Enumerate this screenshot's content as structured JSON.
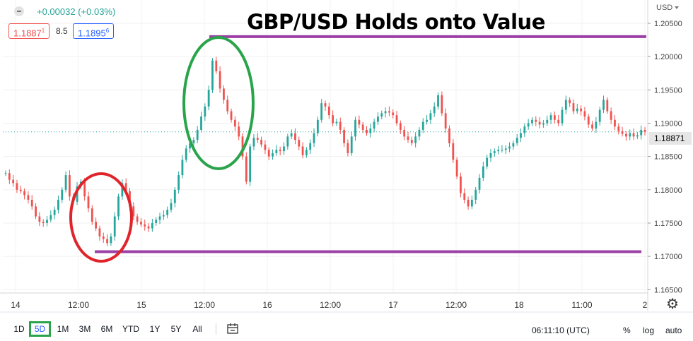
{
  "chart_title": "GBP/USD Holds onto Value",
  "header": {
    "change_text": "+0.00032 (+0.03%)",
    "bid": "1.1887",
    "bid_sup": "1",
    "spread": "8.5",
    "ask": "1.1895",
    "ask_sup": "6",
    "currency": "USD"
  },
  "price_axis": {
    "current_price_label": "1.18871",
    "tick_labels": [
      "1.20500",
      "1.20000",
      "1.19500",
      "1.19000",
      "1.18500",
      "1.18000",
      "1.17500",
      "1.17000",
      "1.16500"
    ]
  },
  "time_axis": {
    "tick_labels": [
      "14",
      "12:00",
      "15",
      "12:00",
      "16",
      "12:00",
      "17",
      "12:00",
      "18",
      "11:00",
      "2"
    ]
  },
  "toolbar": {
    "ranges": [
      "1D",
      "5D",
      "1M",
      "3M",
      "6M",
      "YTD",
      "1Y",
      "5Y",
      "All"
    ],
    "active_range": "5D",
    "clock": "06:11:10 (UTC)",
    "percent_label": "%",
    "log_label": "log",
    "auto_label": "auto"
  },
  "colors": {
    "up": "#26a69a",
    "down": "#ef5350",
    "level_line": "#9c3fa6",
    "ellipse_green": "#2aa44a",
    "ellipse_red": "#e0242b",
    "bid_box": "#ef5350",
    "ask_box": "#2962ff"
  },
  "icons": {
    "collapse": "minus-circle-icon",
    "compare": "compare-calendar-icon",
    "settings": "gear-icon"
  },
  "chart_data": {
    "type": "line",
    "title": "GBP/USD Holds onto Value",
    "x_range": [
      "14",
      "2"
    ],
    "ylim": [
      1.1645,
      1.2085
    ],
    "yticks": [
      1.205,
      1.2,
      1.195,
      1.19,
      1.185,
      1.18,
      1.175,
      1.17,
      1.165
    ],
    "x_tick_labels": [
      "14",
      "12:00",
      "15",
      "12:00",
      "16",
      "12:00",
      "17",
      "12:00",
      "18",
      "11:00",
      "2"
    ],
    "series": [
      {
        "values": [
          1.1825,
          1.1815,
          1.181,
          1.18,
          1.1798,
          1.1792,
          1.1785,
          1.1775,
          1.176,
          1.1752,
          1.175,
          1.1755,
          1.1762,
          1.177,
          1.1785,
          1.18,
          1.1822,
          1.179,
          1.1782,
          1.1805,
          1.1812,
          1.179,
          1.1772,
          1.1752,
          1.1742,
          1.173,
          1.1726,
          1.172,
          1.173,
          1.176,
          1.179,
          1.181,
          1.1798,
          1.1775,
          1.176,
          1.1752,
          1.1748,
          1.1745,
          1.1742,
          1.175,
          1.1755,
          1.176,
          1.1762,
          1.177,
          1.178,
          1.18,
          1.1822,
          1.1845,
          1.1862,
          1.187,
          1.1875,
          1.189,
          1.191,
          1.1925,
          1.195,
          1.1994,
          1.1978,
          1.1952,
          1.1935,
          1.1918,
          1.1905,
          1.1895,
          1.188,
          1.185,
          1.1812,
          1.1865,
          1.1878,
          1.1875,
          1.1868,
          1.186,
          1.185,
          1.1855,
          1.186,
          1.1858,
          1.1865,
          1.188,
          1.1885,
          1.1875,
          1.1865,
          1.1852,
          1.186,
          1.187,
          1.1885,
          1.1905,
          1.193,
          1.1925,
          1.1912,
          1.19,
          1.1902,
          1.189,
          1.187,
          1.1855,
          1.188,
          1.1905,
          1.1898,
          1.189,
          1.1885,
          1.1892,
          1.1902,
          1.191,
          1.1915,
          1.1918,
          1.1916,
          1.1912,
          1.19,
          1.189,
          1.188,
          1.1875,
          1.187,
          1.188,
          1.189,
          1.1902,
          1.1905,
          1.1915,
          1.1925,
          1.1942,
          1.1915,
          1.1892,
          1.187,
          1.1845,
          1.182,
          1.1795,
          1.1785,
          1.1775,
          1.1785,
          1.18,
          1.1818,
          1.1835,
          1.1848,
          1.1855,
          1.1858,
          1.186,
          1.186,
          1.1862,
          1.1865,
          1.187,
          1.1878,
          1.1885,
          1.1895,
          1.19,
          1.1905,
          1.1902,
          1.1898,
          1.19,
          1.1905,
          1.1912,
          1.1905,
          1.19,
          1.192,
          1.1935,
          1.193,
          1.1918,
          1.1922,
          1.1918,
          1.191,
          1.1898,
          1.1892,
          1.1902,
          1.192,
          1.1935,
          1.1918,
          1.1905,
          1.1895,
          1.1888,
          1.1884,
          1.188,
          1.1885,
          1.188,
          1.1882,
          1.189,
          1.1887
        ]
      }
    ],
    "horizontal_lines": [
      1.203,
      1.1707
    ],
    "grid": true
  }
}
